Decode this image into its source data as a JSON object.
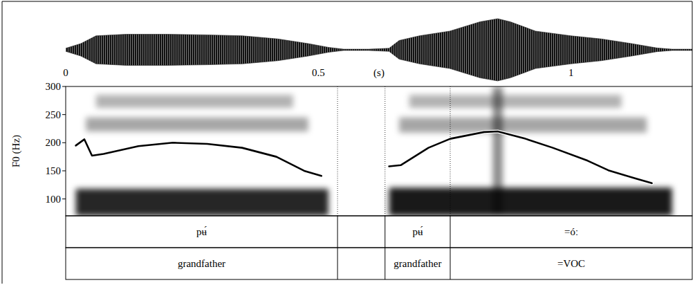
{
  "chart_data": {
    "type": "line",
    "x_label": "(s)",
    "y_label": "F0 (Hz)",
    "x": [
      0.02,
      0.037,
      0.052,
      0.075,
      0.144,
      0.212,
      0.28,
      0.349,
      0.417,
      0.472,
      0.506,
      0.57,
      0.64,
      0.663,
      0.718,
      0.761,
      0.828,
      0.855,
      0.91,
      0.964,
      1.033,
      1.074,
      1.129,
      1.16
    ],
    "values": [
      195,
      206,
      177,
      180,
      194,
      200,
      198,
      191,
      175,
      150,
      141,
      null,
      158,
      160,
      191,
      207,
      219,
      220,
      207,
      191,
      168,
      151,
      136,
      128
    ],
    "color": "#000000",
    "xlim": [
      0,
      1.24
    ],
    "xticks": [
      0,
      0.5,
      1
    ],
    "ylim": [
      70,
      300
    ],
    "yticks": [
      100,
      150,
      200,
      250,
      300
    ],
    "waveform": {
      "time": [
        0.0,
        0.03,
        0.06,
        0.12,
        0.2,
        0.28,
        0.35,
        0.42,
        0.48,
        0.52,
        0.55,
        0.6,
        0.64,
        0.66,
        0.7,
        0.76,
        0.82,
        0.855,
        0.88,
        0.93,
        1.0,
        1.06,
        1.12,
        1.17,
        1.2,
        1.24
      ],
      "amplitude": [
        0.05,
        0.2,
        0.45,
        0.5,
        0.5,
        0.48,
        0.45,
        0.35,
        0.2,
        0.08,
        0.02,
        0.02,
        0.05,
        0.3,
        0.45,
        0.6,
        0.9,
        1.0,
        0.9,
        0.6,
        0.45,
        0.35,
        0.2,
        0.06,
        0.02,
        0.02
      ]
    },
    "spectrogram": [
      {
        "time": [
          0.02,
          0.52
        ],
        "frequency": [
          70,
          118
        ],
        "intensity": 0.85
      },
      {
        "time": [
          0.04,
          0.48
        ],
        "frequency": [
          220,
          245
        ],
        "intensity": 0.35
      },
      {
        "time": [
          0.06,
          0.45
        ],
        "frequency": [
          262,
          285
        ],
        "intensity": 0.3
      },
      {
        "time": [
          0.64,
          1.2
        ],
        "frequency": [
          70,
          120
        ],
        "intensity": 0.9
      },
      {
        "time": [
          0.66,
          1.15
        ],
        "frequency": [
          218,
          245
        ],
        "intensity": 0.35
      },
      {
        "time": [
          0.68,
          1.1
        ],
        "frequency": [
          262,
          285
        ],
        "intensity": 0.3
      },
      {
        "time": [
          0.845,
          0.865
        ],
        "frequency": [
          70,
          300
        ],
        "intensity": 0.45
      }
    ],
    "tiers": [
      {
        "boundaries": [
          0,
          0.538,
          0.632,
          0.761,
          1.24
        ],
        "labels": [
          "pʉ́",
          null,
          "pʉ́",
          "=óː"
        ]
      },
      {
        "boundaries": [
          0,
          0.538,
          0.632,
          0.761,
          1.24
        ],
        "labels": [
          "grandfather",
          null,
          "grandfather",
          "=VOC"
        ]
      }
    ]
  }
}
